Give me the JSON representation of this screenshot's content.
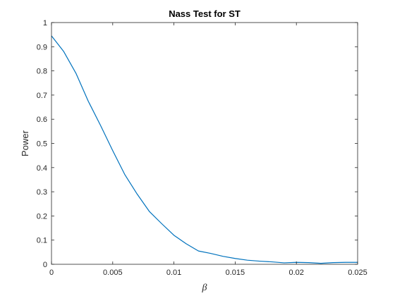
{
  "chart_data": {
    "type": "line",
    "title": "Nass Test for ST",
    "xlabel": "β",
    "ylabel": "Power",
    "xlim": [
      0,
      0.025
    ],
    "ylim": [
      0,
      1
    ],
    "xticks": [
      0,
      0.005,
      0.01,
      0.015,
      0.02,
      0.025
    ],
    "xtick_labels": [
      "0",
      "0.005",
      "0.01",
      "0.015",
      "0.02",
      "0.025"
    ],
    "yticks": [
      0,
      0.1,
      0.2,
      0.3,
      0.4,
      0.5,
      0.6,
      0.7,
      0.8,
      0.9,
      1
    ],
    "ytick_labels": [
      "0",
      "0.1",
      "0.2",
      "0.3",
      "0.4",
      "0.5",
      "0.6",
      "0.7",
      "0.8",
      "0.9",
      "1"
    ],
    "grid": false,
    "box": true,
    "series": [
      {
        "color": "#0072bd",
        "x": [
          0,
          0.001,
          0.002,
          0.003,
          0.004,
          0.005,
          0.006,
          0.007,
          0.008,
          0.009,
          0.01,
          0.011,
          0.012,
          0.013,
          0.014,
          0.015,
          0.016,
          0.017,
          0.018,
          0.019,
          0.02,
          0.021,
          0.022,
          0.023,
          0.024,
          0.025
        ],
        "y": [
          0.945,
          0.88,
          0.79,
          0.675,
          0.575,
          0.47,
          0.37,
          0.29,
          0.218,
          0.168,
          0.12,
          0.085,
          0.055,
          0.045,
          0.033,
          0.024,
          0.017,
          0.013,
          0.01,
          0.006,
          0.008,
          0.007,
          0.004,
          0.007,
          0.008,
          0.008
        ]
      }
    ]
  }
}
